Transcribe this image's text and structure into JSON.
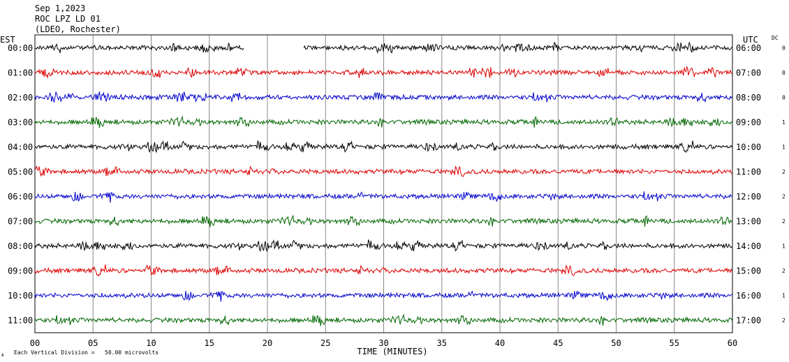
{
  "header": {
    "date": "Sep 1,2023",
    "station": "ROC LPZ LD 01",
    "network": "(LDEO, Rochester)"
  },
  "chart_data": {
    "type": "line",
    "title": "",
    "left_axis_label": "EST",
    "right_axis_label": "UTC",
    "dc_label": "DC",
    "xlabel": "TIME (MINUTES)",
    "xlim": [
      0,
      60
    ],
    "x_ticks": [
      "00",
      "05",
      "10",
      "15",
      "20",
      "25",
      "30",
      "35",
      "40",
      "45",
      "50",
      "55",
      "60"
    ],
    "scale_note": "Each Vertical Division =   50.00 microvolts",
    "corner_mark": "A",
    "trace_colors": [
      "#000000",
      "#dd0000",
      "#0000cc",
      "#006600"
    ],
    "rows": [
      {
        "est": "00:00",
        "utc": "06:00",
        "dc": "0",
        "gaps": [
          [
            18.0,
            23.1
          ]
        ]
      },
      {
        "est": "01:00",
        "utc": "07:00",
        "dc": "0"
      },
      {
        "est": "02:00",
        "utc": "08:00",
        "dc": "0"
      },
      {
        "est": "03:00",
        "utc": "09:00",
        "dc": "1"
      },
      {
        "est": "04:00",
        "utc": "10:00",
        "dc": "1"
      },
      {
        "est": "05:00",
        "utc": "11:00",
        "dc": "2"
      },
      {
        "est": "06:00",
        "utc": "12:00",
        "dc": "2"
      },
      {
        "est": "07:00",
        "utc": "13:00",
        "dc": "2"
      },
      {
        "est": "08:00",
        "utc": "14:00",
        "dc": "1"
      },
      {
        "est": "09:00",
        "utc": "15:00",
        "dc": "2"
      },
      {
        "est": "10:00",
        "utc": "16:00",
        "dc": "1"
      },
      {
        "est": "11:00",
        "utc": "17:00",
        "dc": "2"
      }
    ]
  }
}
